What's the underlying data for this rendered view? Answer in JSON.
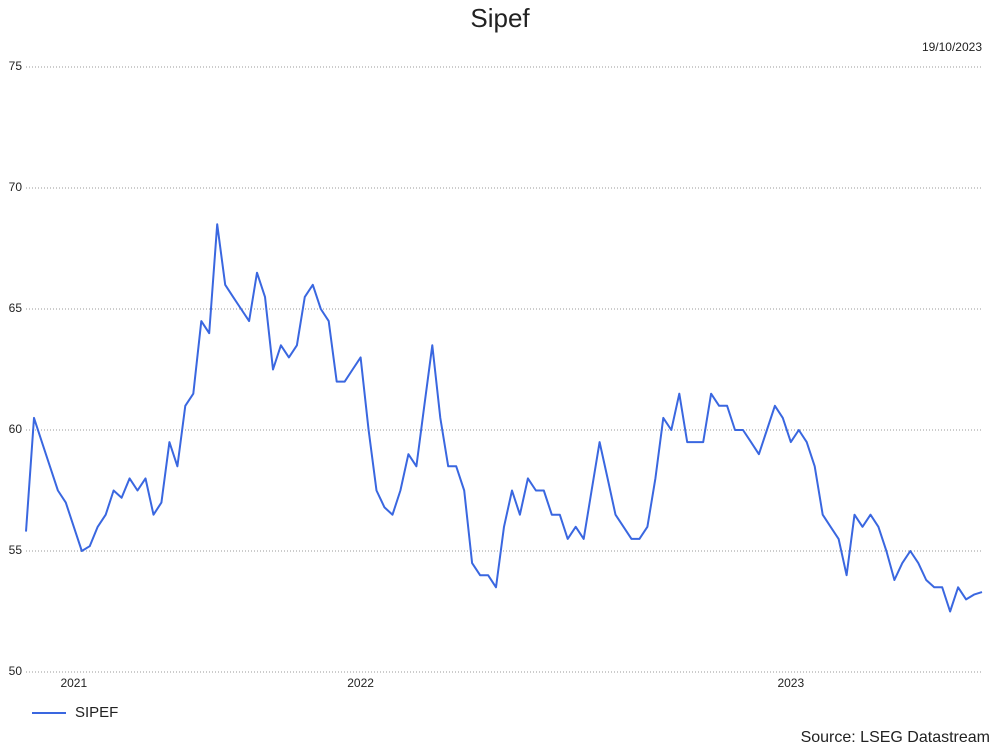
{
  "chart_data": {
    "type": "line",
    "title": "Sipef",
    "date": "19/10/2023",
    "source": "Source: LSEG Datastream",
    "categories": [
      null,
      null,
      null,
      null,
      null,
      null,
      "2021",
      null,
      null,
      null,
      null,
      null,
      null,
      null,
      null,
      null,
      null,
      null,
      null,
      null,
      null,
      null,
      null,
      null,
      null,
      null,
      null,
      null,
      null,
      null,
      null,
      null,
      null,
      null,
      null,
      null,
      null,
      null,
      null,
      null,
      null,
      null,
      "2022",
      null,
      null,
      null,
      null,
      null,
      null,
      null,
      null,
      null,
      null,
      null,
      null,
      null,
      null,
      null,
      null,
      null,
      null,
      null,
      null,
      null,
      null,
      null,
      null,
      null,
      null,
      null,
      null,
      null,
      null,
      null,
      null,
      null,
      null,
      null,
      null,
      null,
      null,
      null,
      null,
      null,
      null,
      null,
      null,
      null,
      null,
      null,
      null,
      null,
      null,
      null,
      null,
      null,
      "2023",
      null,
      null,
      null,
      null,
      null,
      null,
      null,
      null,
      null,
      null,
      null,
      null,
      null,
      null,
      null,
      null,
      null,
      null,
      null,
      null,
      null,
      null,
      null,
      null
    ],
    "series": [
      {
        "name": "SIPEF",
        "color": "#3a67e0",
        "values": [
          55.8,
          60.5,
          59.5,
          58.5,
          57.5,
          57.0,
          56.0,
          55.0,
          55.2,
          56.0,
          56.5,
          57.5,
          57.2,
          58.0,
          57.5,
          58.0,
          56.5,
          57.0,
          59.5,
          58.5,
          61.0,
          61.5,
          64.5,
          64.0,
          68.5,
          66.0,
          65.5,
          65.0,
          64.5,
          66.5,
          65.5,
          62.5,
          63.5,
          63.0,
          63.5,
          65.5,
          66.0,
          65.0,
          64.5,
          62.0,
          62.0,
          62.5,
          63.0,
          60.0,
          57.5,
          56.8,
          56.5,
          57.5,
          59.0,
          58.5,
          61.0,
          63.5,
          60.5,
          58.5,
          58.5,
          57.5,
          54.5,
          54.0,
          54.0,
          53.5,
          56.0,
          57.5,
          56.5,
          58.0,
          57.5,
          57.5,
          56.5,
          56.5,
          55.5,
          56.0,
          55.5,
          57.5,
          59.5,
          58.0,
          56.5,
          56.0,
          55.5,
          55.5,
          56.0,
          58.0,
          60.5,
          60.0,
          61.5,
          59.5,
          59.5,
          59.5,
          61.5,
          61.0,
          61.0,
          60.0,
          60.0,
          59.5,
          59.0,
          60.0,
          61.0,
          60.5,
          59.5,
          60.0,
          59.5,
          58.5,
          56.5,
          56.0,
          55.5,
          54.0,
          56.5,
          56.0,
          56.5,
          56.0,
          55.0,
          53.8,
          54.5,
          55.0,
          54.5,
          53.8,
          53.5,
          53.5,
          52.5,
          53.5,
          53.0,
          53.2,
          53.3
        ]
      }
    ],
    "ylim": [
      50,
      75
    ],
    "yticks": [
      50,
      55,
      60,
      65,
      70,
      75
    ],
    "grid": true
  }
}
